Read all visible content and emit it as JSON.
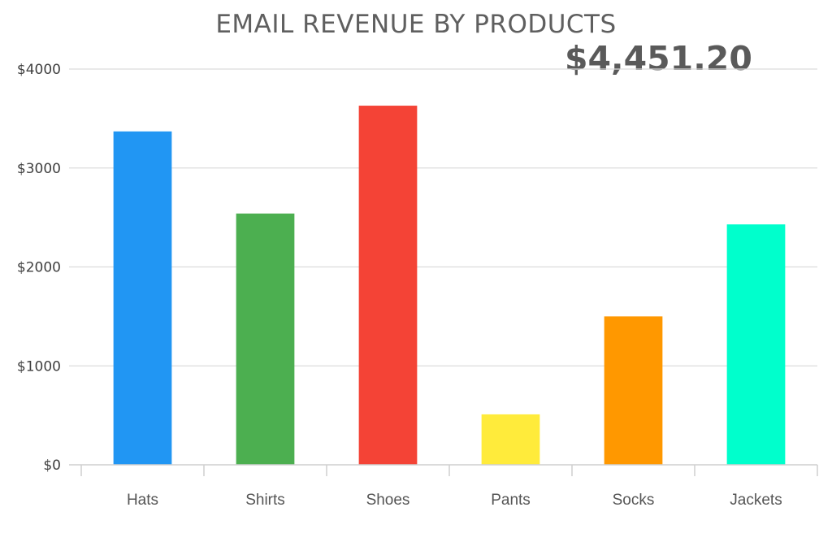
{
  "chart_data": {
    "type": "bar",
    "title": "EMAIL REVENUE BY PRODUCTS",
    "total_label": "$4,451.20",
    "categories": [
      "Hats",
      "Shirts",
      "Shoes",
      "Pants",
      "Socks",
      "Jackets"
    ],
    "values": [
      3370,
      2540,
      3630,
      510,
      1500,
      2430
    ],
    "colors": [
      "#2196F3",
      "#4CAF50",
      "#F44336",
      "#FFEB3B",
      "#FF9800",
      "#00FFCC"
    ],
    "ylim": [
      0,
      4000
    ],
    "yticks": [
      0,
      1000,
      2000,
      3000,
      4000
    ],
    "ytick_labels": [
      "$0",
      "$1000",
      "$2000",
      "$3000",
      "$4000"
    ],
    "grid": true,
    "xlabel": "",
    "ylabel": ""
  }
}
